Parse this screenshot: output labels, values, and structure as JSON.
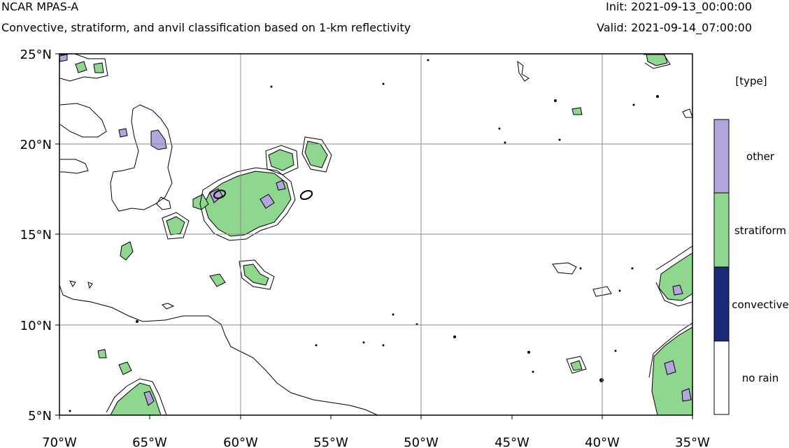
{
  "header": {
    "title": "NCAR MPAS-A",
    "subtitle": "Convective, stratiform, and anvil classification based on 1-km reflectivity",
    "init": "Init: 2021-09-13_00:00:00",
    "valid": "Valid: 2021-09-14_07:00:00"
  },
  "map": {
    "lon_range": [
      -70,
      -35
    ],
    "lat_range": [
      5,
      25
    ],
    "lon_ticks": [
      "70°W",
      "65°W",
      "60°W",
      "55°W",
      "50°W",
      "45°W",
      "40°W",
      "35°W"
    ],
    "lat_ticks": [
      "25°N",
      "20°N",
      "15°N",
      "10°N",
      "5°N"
    ],
    "grid": true,
    "coastline_color": "#000000"
  },
  "colorbar": {
    "title": "[type]",
    "categories": [
      {
        "label": "other",
        "color": "#b3a6dd"
      },
      {
        "label": "stratiform",
        "color": "#8fd68f"
      },
      {
        "label": "convective",
        "color": "#1b2a78"
      },
      {
        "label": "no rain",
        "color": "#ffffff"
      }
    ]
  },
  "colors": {
    "stratiform": "#8fd68f",
    "other": "#b3a6dd",
    "convective": "#1b2a78",
    "gridline": "#888888"
  }
}
